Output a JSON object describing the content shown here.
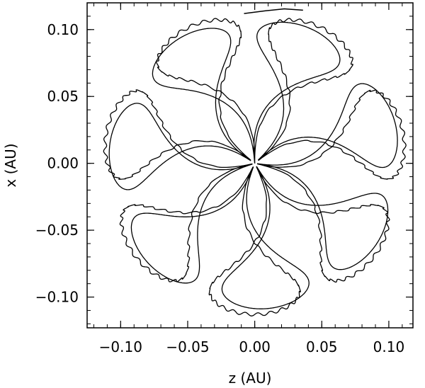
{
  "chart_data": {
    "type": "line",
    "title": "",
    "xlabel": "z (AU)",
    "ylabel": "x (AU)",
    "xlim": [
      -0.125,
      0.118
    ],
    "ylim": [
      -0.123,
      0.12
    ],
    "x_ticks": [
      -0.1,
      -0.05,
      0.0,
      0.05,
      0.1
    ],
    "x_tick_labels": [
      "−0.10",
      "−0.05",
      "0.00",
      "0.05",
      "0.10"
    ],
    "y_ticks": [
      -0.1,
      -0.05,
      0.0,
      0.05,
      0.1
    ],
    "y_tick_labels": [
      "−0.10",
      "−0.05",
      "0.00",
      "0.05",
      "0.10"
    ],
    "grid": false,
    "legend": "none",
    "line_color": "#000000",
    "series": [
      {
        "shape": "rosette",
        "lobes": 7,
        "lobe_reach_au": 0.113,
        "start_angle_deg": 90,
        "precession_deg_per_lobe": 51.4,
        "wiggle": true
      },
      {
        "shape": "rosette",
        "lobes": 7,
        "lobe_reach_au": 0.109,
        "start_angle_deg": 95,
        "precession_deg_per_lobe": 51.4,
        "wiggle": false
      }
    ],
    "trailing_arc": {
      "x": [
        -0.008,
        0.008,
        0.022,
        0.036
      ],
      "y": [
        0.112,
        0.114,
        0.1155,
        0.1145
      ]
    }
  }
}
